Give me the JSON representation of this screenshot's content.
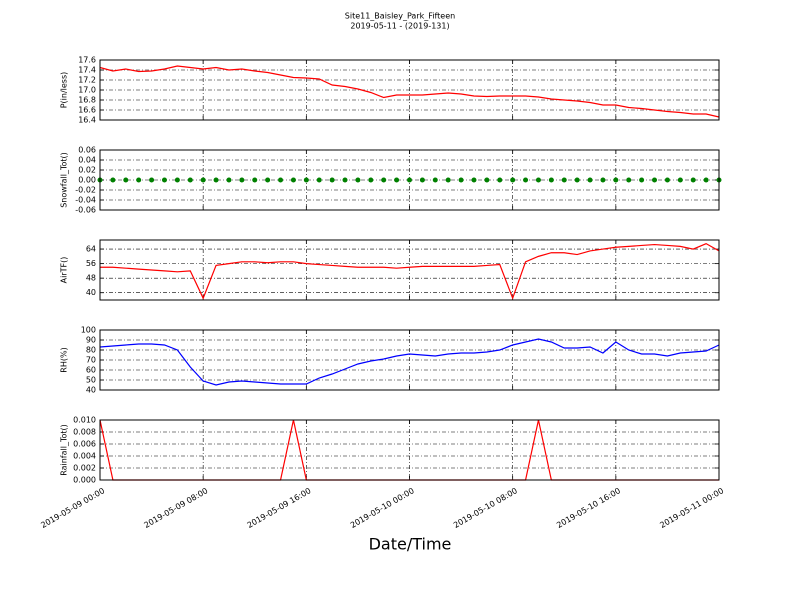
{
  "chart_data": [
    {
      "type": "line",
      "title": "Site11_Baisley_Park_Fifteen",
      "subtitle": "2019-05-11 - (2019-131)",
      "ylabel": "P(in/less)",
      "x": [
        "2019-05-09 00:00",
        "2019-05-09 01:00",
        "2019-05-09 02:00",
        "2019-05-09 03:00",
        "2019-05-09 04:00",
        "2019-05-09 05:00",
        "2019-05-09 06:00",
        "2019-05-09 07:00",
        "2019-05-09 08:00",
        "2019-05-09 09:00",
        "2019-05-09 10:00",
        "2019-05-09 11:00",
        "2019-05-09 12:00",
        "2019-05-09 13:00",
        "2019-05-09 14:00",
        "2019-05-09 15:00",
        "2019-05-09 16:00",
        "2019-05-09 17:00",
        "2019-05-09 18:00",
        "2019-05-09 19:00",
        "2019-05-09 20:00",
        "2019-05-09 21:00",
        "2019-05-09 22:00",
        "2019-05-09 23:00",
        "2019-05-10 00:00",
        "2019-05-10 01:00",
        "2019-05-10 02:00",
        "2019-05-10 03:00",
        "2019-05-10 04:00",
        "2019-05-10 05:00",
        "2019-05-10 06:00",
        "2019-05-10 07:00",
        "2019-05-10 08:00",
        "2019-05-10 09:00",
        "2019-05-10 10:00",
        "2019-05-10 11:00",
        "2019-05-10 12:00",
        "2019-05-10 13:00",
        "2019-05-10 14:00",
        "2019-05-10 15:00",
        "2019-05-10 16:00",
        "2019-05-10 17:00",
        "2019-05-10 18:00",
        "2019-05-10 19:00",
        "2019-05-10 20:00",
        "2019-05-10 21:00",
        "2019-05-10 22:00",
        "2019-05-10 23:00",
        "2019-05-11 00:00"
      ],
      "series": [
        {
          "color": "#ff0000",
          "values": [
            17.45,
            17.38,
            17.42,
            17.37,
            17.38,
            17.42,
            17.48,
            17.45,
            17.42,
            17.45,
            17.4,
            17.42,
            17.38,
            17.35,
            17.3,
            17.25,
            17.24,
            17.22,
            17.1,
            17.07,
            17.02,
            16.95,
            16.85,
            16.9,
            16.9,
            16.9,
            16.92,
            16.94,
            16.92,
            16.88,
            16.87,
            16.88,
            16.88,
            16.88,
            16.86,
            16.82,
            16.8,
            16.78,
            16.75,
            16.7,
            16.7,
            16.65,
            16.63,
            16.6,
            16.57,
            16.55,
            16.52,
            16.52,
            16.46
          ]
        }
      ],
      "xlim": [
        "2019-05-09 00:00",
        "2019-05-11 00:00"
      ],
      "xticks": [
        "2019-05-09 00:00",
        "2019-05-09 08:00",
        "2019-05-09 16:00",
        "2019-05-10 00:00",
        "2019-05-10 08:00",
        "2019-05-10 16:00",
        "2019-05-11 00:00"
      ],
      "ylim": [
        16.4,
        17.6
      ],
      "yticks": [
        16.4,
        16.6,
        16.8,
        {
          "value": 17,
          "label": "17.0"
        },
        17.2,
        17.4,
        17.6
      ],
      "grid": true
    },
    {
      "type": "scatter",
      "ylabel": "Snowfall_Tot()",
      "x": [
        "2019-05-09 00:00",
        "2019-05-09 01:00",
        "2019-05-09 02:00",
        "2019-05-09 03:00",
        "2019-05-09 04:00",
        "2019-05-09 05:00",
        "2019-05-09 06:00",
        "2019-05-09 07:00",
        "2019-05-09 08:00",
        "2019-05-09 09:00",
        "2019-05-09 10:00",
        "2019-05-09 11:00",
        "2019-05-09 12:00",
        "2019-05-09 13:00",
        "2019-05-09 14:00",
        "2019-05-09 15:00",
        "2019-05-09 16:00",
        "2019-05-09 17:00",
        "2019-05-09 18:00",
        "2019-05-09 19:00",
        "2019-05-09 20:00",
        "2019-05-09 21:00",
        "2019-05-09 22:00",
        "2019-05-09 23:00",
        "2019-05-10 00:00",
        "2019-05-10 01:00",
        "2019-05-10 02:00",
        "2019-05-10 03:00",
        "2019-05-10 04:00",
        "2019-05-10 05:00",
        "2019-05-10 06:00",
        "2019-05-10 07:00",
        "2019-05-10 08:00",
        "2019-05-10 09:00",
        "2019-05-10 10:00",
        "2019-05-10 11:00",
        "2019-05-10 12:00",
        "2019-05-10 13:00",
        "2019-05-10 14:00",
        "2019-05-10 15:00",
        "2019-05-10 16:00",
        "2019-05-10 17:00",
        "2019-05-10 18:00",
        "2019-05-10 19:00",
        "2019-05-10 20:00",
        "2019-05-10 21:00",
        "2019-05-10 22:00",
        "2019-05-10 23:00",
        "2019-05-11 00:00"
      ],
      "series": [
        {
          "color": "#008000",
          "values": [
            0,
            0,
            0,
            0,
            0,
            0,
            0,
            0,
            0,
            0,
            0,
            0,
            0,
            0,
            0,
            0,
            0,
            0,
            0,
            0,
            0,
            0,
            0,
            0,
            0,
            0,
            0,
            0,
            0,
            0,
            0,
            0,
            0,
            0,
            0,
            0,
            0,
            0,
            0,
            0,
            0,
            0,
            0,
            0,
            0,
            0,
            0,
            0,
            0
          ]
        }
      ],
      "xlim": [
        "2019-05-09 00:00",
        "2019-05-11 00:00"
      ],
      "xticks": [
        "2019-05-09 00:00",
        "2019-05-09 08:00",
        "2019-05-09 16:00",
        "2019-05-10 00:00",
        "2019-05-10 08:00",
        "2019-05-10 16:00",
        "2019-05-11 00:00"
      ],
      "ylim": [
        -0.06,
        0.06
      ],
      "yticks": [
        -0.06,
        -0.04,
        -0.02,
        {
          "value": 0,
          "label": "0.00"
        },
        0.02,
        0.04,
        0.06
      ],
      "grid": true
    },
    {
      "type": "line",
      "ylabel": "AirTF()",
      "x": [
        "2019-05-09 00:00",
        "2019-05-09 01:00",
        "2019-05-09 02:00",
        "2019-05-09 03:00",
        "2019-05-09 04:00",
        "2019-05-09 05:00",
        "2019-05-09 06:00",
        "2019-05-09 07:00",
        "2019-05-09 08:00",
        "2019-05-09 09:00",
        "2019-05-09 10:00",
        "2019-05-09 11:00",
        "2019-05-09 12:00",
        "2019-05-09 13:00",
        "2019-05-09 14:00",
        "2019-05-09 15:00",
        "2019-05-09 16:00",
        "2019-05-09 17:00",
        "2019-05-09 18:00",
        "2019-05-09 19:00",
        "2019-05-09 20:00",
        "2019-05-09 21:00",
        "2019-05-09 22:00",
        "2019-05-09 23:00",
        "2019-05-10 00:00",
        "2019-05-10 01:00",
        "2019-05-10 02:00",
        "2019-05-10 03:00",
        "2019-05-10 04:00",
        "2019-05-10 05:00",
        "2019-05-10 06:00",
        "2019-05-10 07:00",
        "2019-05-10 08:00",
        "2019-05-10 09:00",
        "2019-05-10 10:00",
        "2019-05-10 11:00",
        "2019-05-10 12:00",
        "2019-05-10 13:00",
        "2019-05-10 14:00",
        "2019-05-10 15:00",
        "2019-05-10 16:00",
        "2019-05-10 17:00",
        "2019-05-10 18:00",
        "2019-05-10 19:00",
        "2019-05-10 20:00",
        "2019-05-10 21:00",
        "2019-05-10 22:00",
        "2019-05-10 23:00",
        "2019-05-11 00:00"
      ],
      "series": [
        {
          "color": "#ff0000",
          "values": [
            54,
            54,
            53.5,
            53,
            52.5,
            52,
            51.5,
            52,
            37,
            55,
            56,
            57,
            57,
            56.5,
            57,
            57,
            56,
            55.5,
            55,
            54.5,
            54,
            54,
            54,
            53.5,
            54,
            54.5,
            54.5,
            54.5,
            54.5,
            54.5,
            55,
            55.5,
            37,
            57,
            60,
            62,
            62,
            61,
            63,
            64,
            65,
            65.5,
            66,
            66.5,
            66,
            65.5,
            64,
            67,
            63
          ]
        }
      ],
      "xlim": [
        "2019-05-09 00:00",
        "2019-05-11 00:00"
      ],
      "xticks": [
        "2019-05-09 00:00",
        "2019-05-09 08:00",
        "2019-05-09 16:00",
        "2019-05-10 00:00",
        "2019-05-10 08:00",
        "2019-05-10 16:00",
        "2019-05-11 00:00"
      ],
      "ylim": [
        36,
        69
      ],
      "yticks": [
        40,
        48,
        56,
        64
      ],
      "grid": true
    },
    {
      "type": "line",
      "ylabel": "RH(%)",
      "x": [
        "2019-05-09 00:00",
        "2019-05-09 01:00",
        "2019-05-09 02:00",
        "2019-05-09 03:00",
        "2019-05-09 04:00",
        "2019-05-09 05:00",
        "2019-05-09 06:00",
        "2019-05-09 07:00",
        "2019-05-09 08:00",
        "2019-05-09 09:00",
        "2019-05-09 10:00",
        "2019-05-09 11:00",
        "2019-05-09 12:00",
        "2019-05-09 13:00",
        "2019-05-09 14:00",
        "2019-05-09 15:00",
        "2019-05-09 16:00",
        "2019-05-09 17:00",
        "2019-05-09 18:00",
        "2019-05-09 19:00",
        "2019-05-09 20:00",
        "2019-05-09 21:00",
        "2019-05-09 22:00",
        "2019-05-09 23:00",
        "2019-05-10 00:00",
        "2019-05-10 01:00",
        "2019-05-10 02:00",
        "2019-05-10 03:00",
        "2019-05-10 04:00",
        "2019-05-10 05:00",
        "2019-05-10 06:00",
        "2019-05-10 07:00",
        "2019-05-10 08:00",
        "2019-05-10 09:00",
        "2019-05-10 10:00",
        "2019-05-10 11:00",
        "2019-05-10 12:00",
        "2019-05-10 13:00",
        "2019-05-10 14:00",
        "2019-05-10 15:00",
        "2019-05-10 16:00",
        "2019-05-10 17:00",
        "2019-05-10 18:00",
        "2019-05-10 19:00",
        "2019-05-10 20:00",
        "2019-05-10 21:00",
        "2019-05-10 22:00",
        "2019-05-10 23:00",
        "2019-05-11 00:00"
      ],
      "series": [
        {
          "color": "#0000ff",
          "values": [
            83,
            84,
            85,
            86,
            86,
            85,
            80,
            63,
            49,
            45,
            48,
            49,
            48,
            47,
            46,
            46,
            46,
            52,
            56,
            61,
            66,
            69,
            71,
            74,
            76,
            75,
            74,
            76,
            77,
            77,
            78,
            80,
            85,
            88,
            91,
            88,
            82,
            82,
            83,
            77,
            88,
            80,
            76,
            76,
            74,
            77,
            78,
            79,
            85
          ]
        }
      ],
      "xlim": [
        "2019-05-09 00:00",
        "2019-05-11 00:00"
      ],
      "xticks": [
        "2019-05-09 00:00",
        "2019-05-09 08:00",
        "2019-05-09 16:00",
        "2019-05-10 00:00",
        "2019-05-10 08:00",
        "2019-05-10 16:00",
        "2019-05-11 00:00"
      ],
      "ylim": [
        40,
        100
      ],
      "yticks": [
        40,
        50,
        60,
        70,
        80,
        90,
        100
      ],
      "grid": true
    },
    {
      "type": "line",
      "ylabel": "Rainfall_Tot()",
      "xlabel": "Date/Time",
      "x": [
        "2019-05-09 00:00",
        "2019-05-09 01:00",
        "2019-05-09 02:00",
        "2019-05-09 03:00",
        "2019-05-09 04:00",
        "2019-05-09 05:00",
        "2019-05-09 06:00",
        "2019-05-09 07:00",
        "2019-05-09 08:00",
        "2019-05-09 09:00",
        "2019-05-09 10:00",
        "2019-05-09 11:00",
        "2019-05-09 12:00",
        "2019-05-09 13:00",
        "2019-05-09 14:00",
        "2019-05-09 15:00",
        "2019-05-09 16:00",
        "2019-05-09 17:00",
        "2019-05-09 18:00",
        "2019-05-09 19:00",
        "2019-05-09 20:00",
        "2019-05-09 21:00",
        "2019-05-09 22:00",
        "2019-05-09 23:00",
        "2019-05-10 00:00",
        "2019-05-10 01:00",
        "2019-05-10 02:00",
        "2019-05-10 03:00",
        "2019-05-10 04:00",
        "2019-05-10 05:00",
        "2019-05-10 06:00",
        "2019-05-10 07:00",
        "2019-05-10 08:00",
        "2019-05-10 09:00",
        "2019-05-10 10:00",
        "2019-05-10 11:00",
        "2019-05-10 12:00",
        "2019-05-10 13:00",
        "2019-05-10 14:00",
        "2019-05-10 15:00",
        "2019-05-10 16:00",
        "2019-05-10 17:00",
        "2019-05-10 18:00",
        "2019-05-10 19:00",
        "2019-05-10 20:00",
        "2019-05-10 21:00",
        "2019-05-10 22:00",
        "2019-05-10 23:00",
        "2019-05-11 00:00"
      ],
      "series": [
        {
          "color": "#ff0000",
          "values": [
            0.01,
            0,
            0,
            0,
            0,
            0,
            0,
            0,
            0,
            0,
            0,
            0,
            0,
            0,
            0,
            0.01,
            0,
            0,
            0,
            0,
            0,
            0,
            0,
            0,
            0,
            0,
            0,
            0,
            0,
            0,
            0,
            0,
            0,
            0,
            0.01,
            0,
            0,
            0,
            0,
            0,
            0,
            0,
            0,
            0,
            0,
            0,
            0,
            0,
            0
          ]
        }
      ],
      "xlim": [
        "2019-05-09 00:00",
        "2019-05-11 00:00"
      ],
      "xticks": [
        "2019-05-09 00:00",
        "2019-05-09 08:00",
        "2019-05-09 16:00",
        "2019-05-10 00:00",
        "2019-05-10 08:00",
        "2019-05-10 16:00",
        "2019-05-11 00:00"
      ],
      "xticklabels": true,
      "ylim": [
        0,
        0.01
      ],
      "yticks": [
        {
          "value": 0,
          "label": "0.000"
        },
        {
          "value": 0.002,
          "label": "0.002"
        },
        {
          "value": 0.004,
          "label": "0.004"
        },
        {
          "value": 0.006,
          "label": "0.006"
        },
        {
          "value": 0.008,
          "label": "0.008"
        },
        {
          "value": 0.01,
          "label": "0.010"
        }
      ],
      "grid": true
    }
  ]
}
